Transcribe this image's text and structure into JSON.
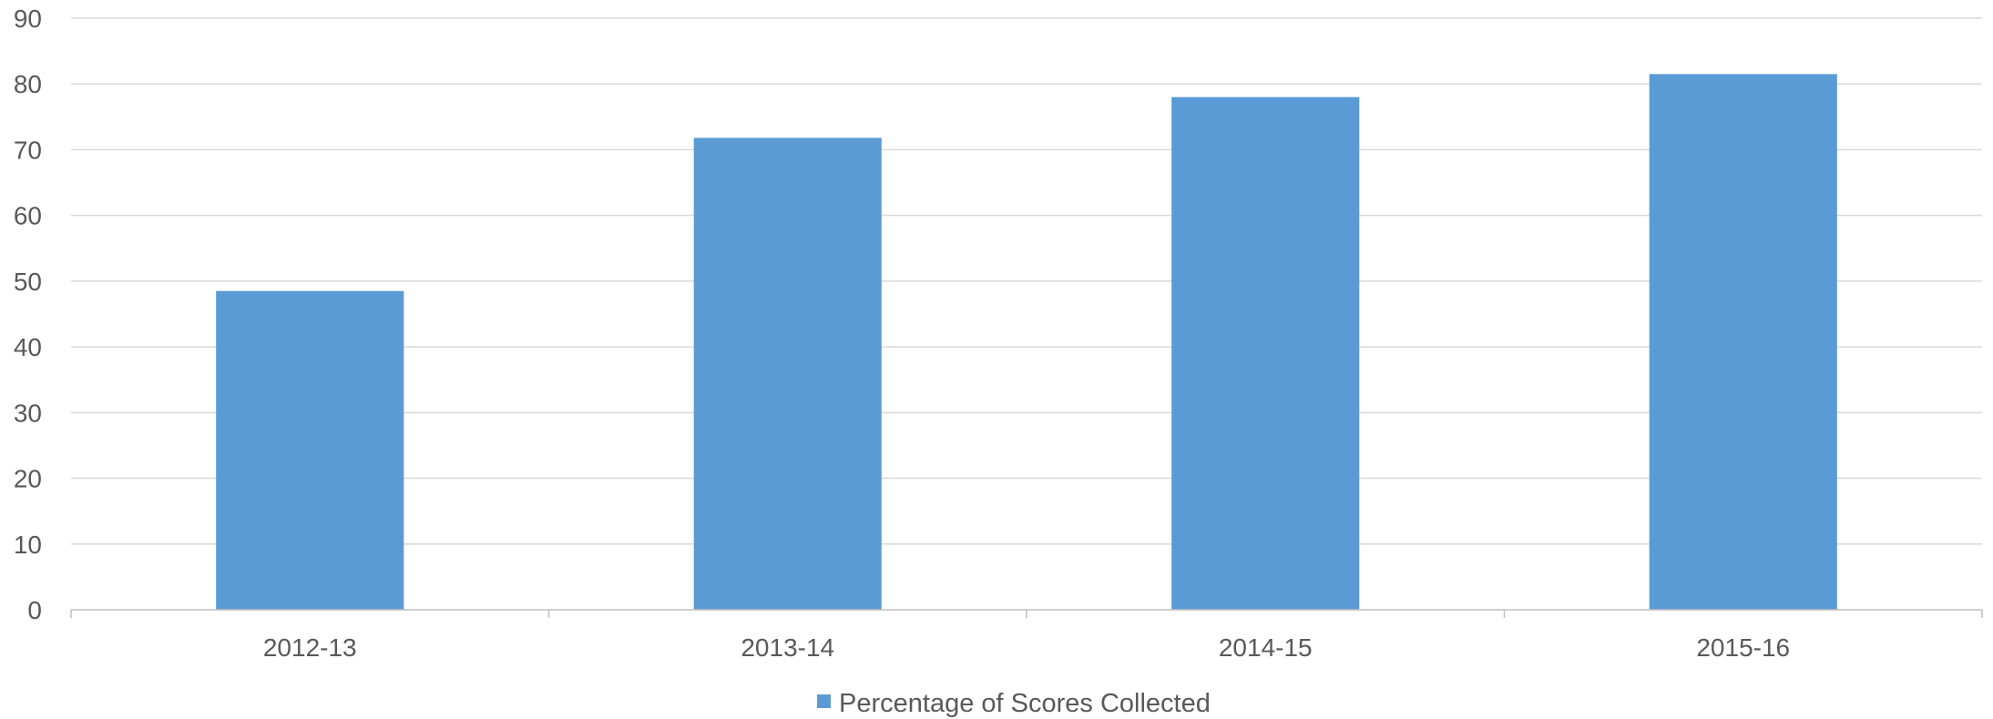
{
  "chart_data": {
    "type": "bar",
    "categories": [
      "2012-13",
      "2013-14",
      "2014-15",
      "2015-16"
    ],
    "series": [
      {
        "name": "Percentage of Scores Collected",
        "values": [
          48.5,
          71.8,
          78,
          81.5
        ],
        "color": "#5b9bd5"
      }
    ],
    "title": "",
    "xlabel": "",
    "ylabel": "",
    "ylim": [
      0,
      90
    ],
    "yticks": [
      "0",
      "10",
      "20",
      "30",
      "40",
      "50",
      "60",
      "70",
      "80",
      "90"
    ],
    "grid": true,
    "legend_position": "bottom"
  }
}
